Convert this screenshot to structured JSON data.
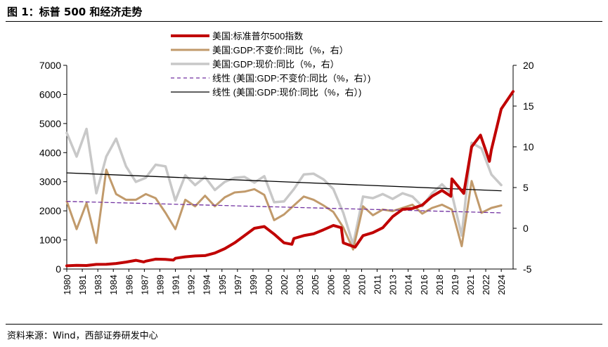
{
  "figure": {
    "title": "图 1：标普 500 和经济走势",
    "source": "资料来源：Wind，西部证券研发中心"
  },
  "colors": {
    "sp500": "#c00000",
    "gdp_real": "#c19a6b",
    "gdp_nominal": "#c8c8c8",
    "trend_real": "#7030a0",
    "trend_nominal": "#000000"
  },
  "chart_data": {
    "type": "line",
    "title": "",
    "xlabel": "",
    "ylabel": "",
    "y_left": {
      "lim": [
        0,
        7000
      ],
      "ticks": [
        0,
        1000,
        2000,
        3000,
        4000,
        5000,
        6000,
        7000
      ]
    },
    "y_right": {
      "lim": [
        -5,
        20
      ],
      "ticks": [
        -5,
        0,
        5,
        10,
        15,
        20
      ]
    },
    "x_range": [
      1980,
      2025.2
    ],
    "x_tick_labels": [
      "1980",
      "1981",
      "1983",
      "1984",
      "1986",
      "1987",
      "1989",
      "1991",
      "1992",
      "1994",
      "1995",
      "1997",
      "1999",
      "2000",
      "2002",
      "2003",
      "2005",
      "2006",
      "2008",
      "2010",
      "2011",
      "2013",
      "2014",
      "2016",
      "2018",
      "2019",
      "2021",
      "2022",
      "2024"
    ],
    "legend_position": "top",
    "series": [
      {
        "name": "美国:标准普尔500指数",
        "axis": "left",
        "style": "thick",
        "x": [
          1980,
          1981,
          1982,
          1983,
          1984,
          1985,
          1986,
          1987,
          1987.8,
          1988,
          1989,
          1990,
          1990.8,
          1991,
          1992,
          1993,
          1994,
          1995,
          1996,
          1997,
          1998,
          1999,
          2000,
          2001,
          2002,
          2002.8,
          2003,
          2004,
          2005,
          2006,
          2007,
          2007.8,
          2008,
          2009.2,
          2010,
          2011,
          2012,
          2013,
          2014,
          2015,
          2016,
          2017,
          2018,
          2018.9,
          2019,
          2020.2,
          2020.5,
          2021,
          2021.9,
          2022.8,
          2023,
          2024,
          2025,
          2025.2
        ],
        "y": [
          110,
          125,
          120,
          160,
          165,
          190,
          240,
          300,
          245,
          270,
          340,
          330,
          310,
          370,
          420,
          450,
          460,
          550,
          700,
          900,
          1150,
          1400,
          1460,
          1200,
          900,
          850,
          1050,
          1150,
          1210,
          1350,
          1500,
          1420,
          900,
          750,
          1150,
          1250,
          1420,
          1800,
          2050,
          2080,
          2200,
          2500,
          2700,
          2500,
          3100,
          2600,
          3200,
          4200,
          4600,
          3700,
          4100,
          5500,
          6000,
          6100
        ]
      },
      {
        "name": "美国:GDP:不变价:同比（%，右）",
        "axis": "right",
        "style": "line",
        "x": [
          1980,
          1981,
          1982,
          1983,
          1984,
          1985,
          1986,
          1987,
          1988,
          1989,
          1990,
          1991,
          1992,
          1993,
          1994,
          1995,
          1996,
          1997,
          1998,
          1999,
          2000,
          2001,
          2002,
          2003,
          2004,
          2005,
          2006,
          2007,
          2008,
          2009,
          2010,
          2011,
          2012,
          2013,
          2014,
          2015,
          2016,
          2017,
          2018,
          2019,
          2020,
          2021,
          2022,
          2023,
          2024
        ],
        "y": [
          3.3,
          -0.1,
          3.1,
          -1.8,
          7.2,
          4.2,
          3.5,
          3.5,
          4.2,
          3.7,
          1.9,
          -0.1,
          3.5,
          2.7,
          4.0,
          2.7,
          3.8,
          4.4,
          4.5,
          4.8,
          4.1,
          1.0,
          1.7,
          2.8,
          3.9,
          3.5,
          2.8,
          2.0,
          0.1,
          -2.6,
          2.7,
          1.6,
          2.3,
          2.1,
          2.5,
          2.9,
          1.8,
          2.5,
          2.9,
          2.3,
          -2.2,
          5.8,
          1.9,
          2.5,
          2.8
        ]
      },
      {
        "name": "美国:GDP:现价:同比（%，右）",
        "axis": "right",
        "style": "line",
        "x": [
          1980,
          1981,
          1982,
          1983,
          1984,
          1985,
          1986,
          1987,
          1988,
          1989,
          1990,
          1991,
          1992,
          1993,
          1994,
          1995,
          1996,
          1997,
          1998,
          1999,
          2000,
          2001,
          2002,
          2003,
          2004,
          2005,
          2006,
          2007,
          2008,
          2009,
          2010,
          2011,
          2012,
          2013,
          2014,
          2015,
          2016,
          2017,
          2018,
          2019,
          2020,
          2021,
          2022,
          2023,
          2024
        ],
        "y": [
          11.7,
          8.8,
          12.2,
          4.3,
          8.8,
          11.0,
          7.6,
          5.7,
          6.2,
          7.8,
          7.6,
          3.4,
          6.5,
          5.3,
          6.3,
          4.7,
          5.7,
          6.2,
          6.3,
          5.6,
          6.4,
          3.2,
          3.3,
          4.8,
          6.6,
          6.7,
          6.0,
          4.8,
          1.9,
          -2.0,
          3.9,
          3.7,
          4.2,
          3.6,
          4.3,
          3.9,
          2.7,
          4.3,
          5.4,
          4.2,
          -0.9,
          10.5,
          9.8,
          6.6,
          5.3
        ]
      },
      {
        "name": "线性 (美国:GDP:不变价:同比（%，右）)",
        "axis": "right",
        "style": "dashed",
        "x": [
          1980,
          2024
        ],
        "y": [
          3.3,
          1.9
        ]
      },
      {
        "name": "线性 (美国:GDP:现价:同比（%，右）)",
        "axis": "right",
        "style": "line",
        "x": [
          1980,
          2024
        ],
        "y": [
          6.8,
          4.6
        ]
      }
    ]
  }
}
